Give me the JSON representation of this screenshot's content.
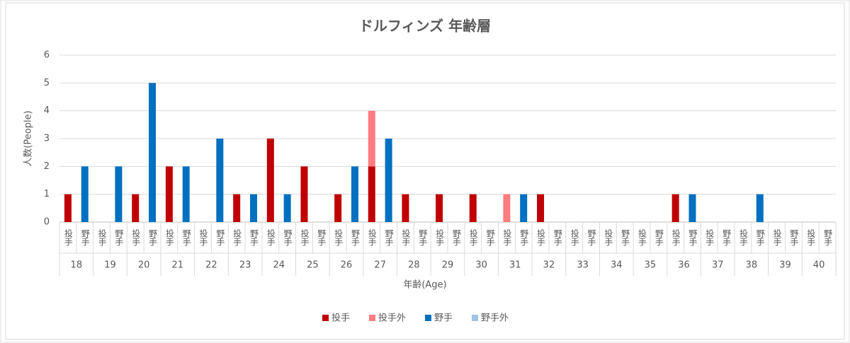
{
  "chart_data": {
    "type": "stacked-bar",
    "title": "ドルフィンズ 年齢層",
    "x_label": "年齢(Age)",
    "y_label": "人数(People)",
    "groups": [
      "18",
      "19",
      "20",
      "21",
      "22",
      "23",
      "24",
      "25",
      "26",
      "27",
      "28",
      "29",
      "30",
      "31",
      "32",
      "33",
      "34",
      "35",
      "36",
      "37",
      "38",
      "39",
      "40"
    ],
    "categories": [
      "投手",
      "野手",
      "投手",
      "野手",
      "投手",
      "野手",
      "投手",
      "野手",
      "投手",
      "野手",
      "投手",
      "野手",
      "投手",
      "野手",
      "投手",
      "野手",
      "投手",
      "野手",
      "投手",
      "野手",
      "投手",
      "野手",
      "投手",
      "野手",
      "投手",
      "野手",
      "投手",
      "野手",
      "投手",
      "野手",
      "投手",
      "野手",
      "投手",
      "野手",
      "投手",
      "野手",
      "投手",
      "野手",
      "投手",
      "野手",
      "投手",
      "野手",
      "投手",
      "野手",
      "投手",
      "野手"
    ],
    "series": [
      {
        "name": "投手",
        "color": "#c00000",
        "values": [
          1,
          null,
          0,
          null,
          1,
          null,
          2,
          null,
          0,
          null,
          1,
          null,
          3,
          null,
          2,
          null,
          1,
          null,
          2,
          null,
          1,
          null,
          1,
          null,
          1,
          null,
          0,
          null,
          1,
          null,
          0,
          null,
          0,
          null,
          0,
          null,
          1,
          null,
          0,
          null,
          0,
          null,
          0,
          null,
          0,
          null
        ]
      },
      {
        "name": "投手外",
        "color": "#ff7c80",
        "values": [
          0,
          null,
          0,
          null,
          0,
          null,
          0,
          null,
          0,
          null,
          0,
          null,
          0,
          null,
          0,
          null,
          0,
          null,
          2,
          null,
          0,
          null,
          0,
          null,
          0,
          null,
          1,
          null,
          0,
          null,
          0,
          null,
          0,
          null,
          0,
          null,
          0,
          null,
          0,
          null,
          0,
          null,
          0,
          null,
          0,
          null
        ]
      },
      {
        "name": "野手",
        "color": "#0070c0",
        "values": [
          null,
          2,
          null,
          2,
          null,
          5,
          null,
          2,
          null,
          3,
          null,
          1,
          null,
          1,
          null,
          0,
          null,
          2,
          null,
          3,
          null,
          0,
          null,
          0,
          null,
          0,
          null,
          1,
          null,
          0,
          null,
          0,
          null,
          0,
          null,
          0,
          null,
          1,
          null,
          0,
          null,
          1,
          null,
          0,
          null,
          0
        ]
      },
      {
        "name": "野手外",
        "color": "#9dc3e6",
        "values": [
          null,
          0,
          null,
          0,
          null,
          0,
          null,
          0,
          null,
          0,
          null,
          0,
          null,
          0,
          null,
          0,
          null,
          0,
          null,
          0,
          null,
          0,
          null,
          0,
          null,
          0,
          null,
          0,
          null,
          0,
          null,
          0,
          null,
          0,
          null,
          0,
          null,
          0,
          null,
          0,
          null,
          0,
          null,
          0,
          null,
          0
        ]
      }
    ],
    "ylim": [
      0,
      6
    ],
    "yticks": [
      0,
      1,
      2,
      3,
      4,
      5,
      6
    ],
    "grid": true,
    "legend": "bottom"
  }
}
